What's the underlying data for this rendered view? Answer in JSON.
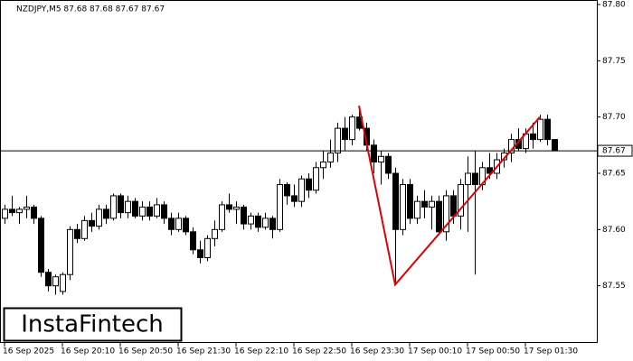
{
  "chart_data": {
    "type": "candlestick",
    "title": "NZDJPY,M5  87.68 87.68 87.67 87.67",
    "logo": "InstaFintech",
    "categories": [
      "16 Sep 2025",
      null,
      null,
      null,
      null,
      null,
      null,
      null,
      "16 Sep 20:10",
      null,
      null,
      null,
      null,
      null,
      null,
      null,
      "16 Sep 20:50",
      null,
      null,
      null,
      null,
      null,
      null,
      null,
      "16 Sep 21:30",
      null,
      null,
      null,
      null,
      null,
      null,
      null,
      "16 Sep 22:10",
      null,
      null,
      null,
      null,
      null,
      null,
      null,
      "16 Sep 22:50",
      null,
      null,
      null,
      null,
      null,
      null,
      null,
      "16 Sep 23:30",
      null,
      null,
      null,
      null,
      null,
      null,
      null,
      "17 Sep 00:10",
      null,
      null,
      null,
      null,
      null,
      null,
      null,
      "17 Sep 00:50",
      null,
      null,
      null,
      null,
      null,
      null,
      null,
      "17 Sep 01:30",
      null,
      null,
      null,
      null
    ],
    "open": [
      87.61,
      87.618,
      87.615,
      87.618,
      87.62,
      87.61,
      87.562,
      87.55,
      87.545,
      87.56,
      87.6,
      87.592,
      87.608,
      87.603,
      87.618,
      87.61,
      87.63,
      87.615,
      87.625,
      87.612,
      87.62,
      87.612,
      87.622,
      87.61,
      87.6,
      87.61,
      87.598,
      87.582,
      87.575,
      87.592,
      87.6,
      87.622,
      87.618,
      87.62,
      87.605,
      87.612,
      87.602,
      87.61,
      87.6,
      87.64,
      87.63,
      87.625,
      87.645,
      87.635,
      87.655,
      87.66,
      87.668,
      87.69,
      87.68,
      87.7,
      87.69,
      87.675,
      87.66,
      87.665,
      87.65,
      87.6,
      87.64,
      87.61,
      87.625,
      87.62,
      87.625,
      87.598,
      87.63,
      87.612,
      87.64,
      87.65,
      87.64,
      87.655,
      87.65,
      87.662,
      87.668,
      87.68,
      87.672,
      87.685,
      87.68,
      87.698,
      87.68
    ],
    "high": [
      87.622,
      87.63,
      87.62,
      87.63,
      87.622,
      87.612,
      87.565,
      87.56,
      87.562,
      87.603,
      87.605,
      87.612,
      87.615,
      87.622,
      87.622,
      87.632,
      87.632,
      87.63,
      87.628,
      87.625,
      87.625,
      87.628,
      87.625,
      87.615,
      87.615,
      87.612,
      87.602,
      87.59,
      87.595,
      87.608,
      87.625,
      87.632,
      87.625,
      87.622,
      87.615,
      87.615,
      87.615,
      87.612,
      87.645,
      87.642,
      87.64,
      87.648,
      87.65,
      87.66,
      87.67,
      87.68,
      87.695,
      87.7,
      87.702,
      87.71,
      87.695,
      87.68,
      87.67,
      87.668,
      87.655,
      87.645,
      87.645,
      87.63,
      87.635,
      87.63,
      87.63,
      87.635,
      87.635,
      87.645,
      87.665,
      87.67,
      87.66,
      87.668,
      87.668,
      87.672,
      87.685,
      87.69,
      87.69,
      87.695,
      87.702,
      87.702,
      87.68
    ],
    "low": [
      87.605,
      87.612,
      87.605,
      87.61,
      87.605,
      87.558,
      87.545,
      87.542,
      87.542,
      87.555,
      87.588,
      87.59,
      87.598,
      87.6,
      87.605,
      87.608,
      87.61,
      87.61,
      87.61,
      87.608,
      87.608,
      87.61,
      87.605,
      87.595,
      87.598,
      87.595,
      87.578,
      87.57,
      87.572,
      87.585,
      87.598,
      87.615,
      87.605,
      87.6,
      87.6,
      87.598,
      87.6,
      87.592,
      87.598,
      87.622,
      87.62,
      87.62,
      87.628,
      87.632,
      87.645,
      87.655,
      87.66,
      87.67,
      87.675,
      87.688,
      87.67,
      87.65,
      87.64,
      87.645,
      87.552,
      87.595,
      87.605,
      87.605,
      87.61,
      87.6,
      87.595,
      87.59,
      87.605,
      87.6,
      87.598,
      87.56,
      87.635,
      87.645,
      87.645,
      87.655,
      87.66,
      87.67,
      87.668,
      87.672,
      87.678,
      87.675,
      87.67
    ],
    "close": [
      87.618,
      87.615,
      87.618,
      87.62,
      87.61,
      87.562,
      87.55,
      87.558,
      87.56,
      87.6,
      87.592,
      87.608,
      87.603,
      87.618,
      87.61,
      87.63,
      87.615,
      87.625,
      87.612,
      87.62,
      87.612,
      87.622,
      87.61,
      87.6,
      87.61,
      87.598,
      87.582,
      87.575,
      87.592,
      87.6,
      87.622,
      87.618,
      87.62,
      87.605,
      87.612,
      87.602,
      87.61,
      87.6,
      87.64,
      87.63,
      87.625,
      87.645,
      87.635,
      87.655,
      87.66,
      87.668,
      87.69,
      87.68,
      87.7,
      87.69,
      87.675,
      87.66,
      87.665,
      87.65,
      87.6,
      87.64,
      87.61,
      87.625,
      87.62,
      87.625,
      87.598,
      87.63,
      87.612,
      87.64,
      87.65,
      87.64,
      87.655,
      87.65,
      87.662,
      87.668,
      87.68,
      87.672,
      87.685,
      87.68,
      87.698,
      87.68,
      87.67
    ],
    "pattern": {
      "color": "#e00000",
      "x": [
        49,
        54,
        74
      ],
      "values": [
        87.71,
        87.551,
        87.7
      ]
    },
    "current_price": 87.67,
    "ylim": [
      87.5,
      87.8
    ],
    "yticks": [
      {
        "value": 87.8,
        "label": "87.80"
      },
      87.75,
      {
        "value": 87.7,
        "label": "87.70"
      },
      87.65,
      {
        "value": 87.6,
        "label": "87.60"
      },
      87.55
    ]
  }
}
